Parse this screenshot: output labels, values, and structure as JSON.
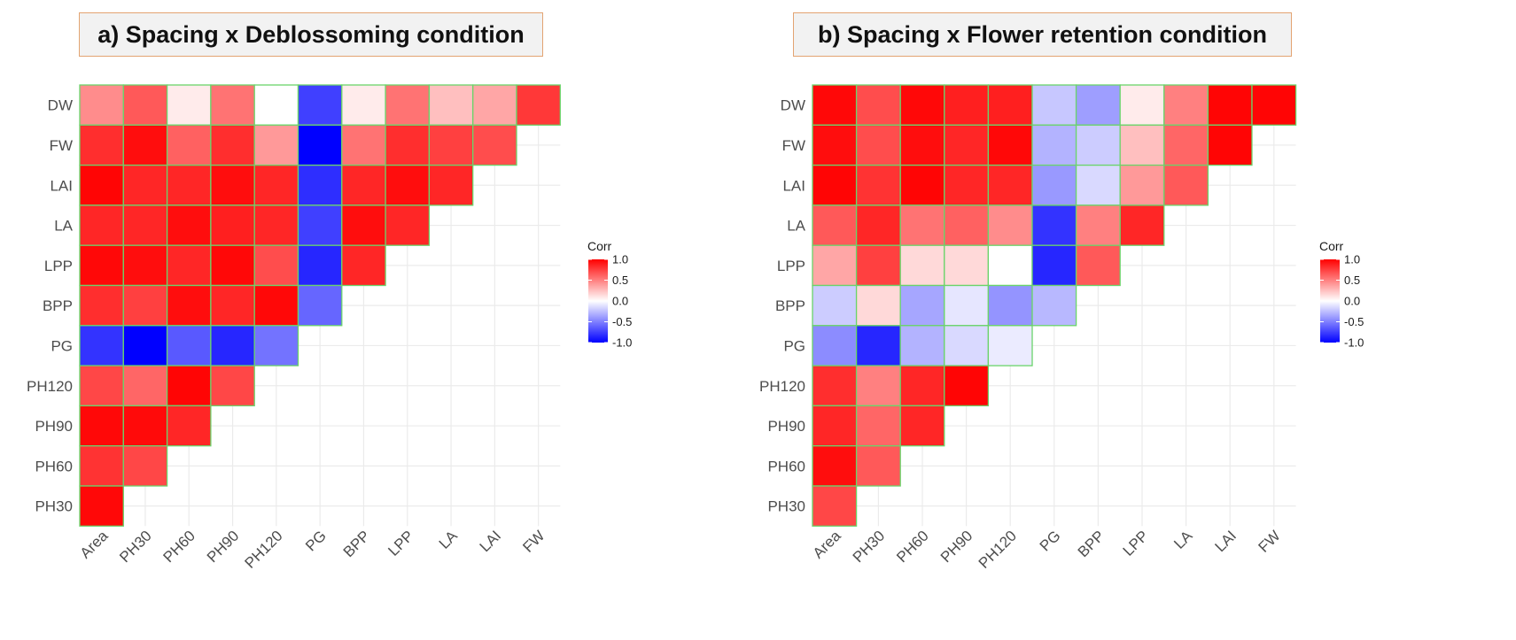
{
  "chart_data": [
    {
      "type": "heatmap",
      "title": "a) Spacing x Deblossoming condition",
      "x_labels": [
        "Area",
        "PH30",
        "PH60",
        "PH90",
        "PH120",
        "PG",
        "BPP",
        "LPP",
        "LA",
        "LAI",
        "FW"
      ],
      "y_labels": [
        "DW",
        "FW",
        "LAI",
        "LA",
        "LPP",
        "BPP",
        "PG",
        "PH120",
        "PH90",
        "PH60",
        "PH30"
      ],
      "values": [
        [
          0.45,
          0.65,
          0.08,
          0.55,
          0.0,
          -0.75,
          0.08,
          0.55,
          0.25,
          0.35,
          0.78
        ],
        [
          0.82,
          0.95,
          0.62,
          0.82,
          0.4,
          -1.0,
          0.55,
          0.82,
          0.75,
          0.7
        ],
        [
          0.98,
          0.85,
          0.85,
          0.95,
          0.85,
          -0.82,
          0.85,
          0.95,
          0.85
        ],
        [
          0.85,
          0.85,
          0.95,
          0.88,
          0.85,
          -0.75,
          0.95,
          0.85
        ],
        [
          0.97,
          0.95,
          0.85,
          0.97,
          0.7,
          -0.85,
          0.85
        ],
        [
          0.82,
          0.75,
          0.95,
          0.85,
          0.97,
          -0.6
        ],
        [
          -0.8,
          -1.0,
          -0.65,
          -0.85,
          -0.55
        ],
        [
          0.72,
          0.6,
          0.98,
          0.72
        ],
        [
          0.97,
          0.96,
          0.85
        ],
        [
          0.8,
          0.72
        ],
        [
          0.97
        ]
      ],
      "legend": {
        "title": "Corr",
        "ticks": [
          "1.0",
          "0.5",
          "0.0",
          "-0.5",
          "-1.0"
        ],
        "range": [
          -1,
          1
        ]
      }
    },
    {
      "type": "heatmap",
      "title": "b) Spacing x Flower retention condition",
      "x_labels": [
        "Area",
        "PH30",
        "PH60",
        "PH90",
        "PH120",
        "PG",
        "BPP",
        "LPP",
        "LA",
        "LAI",
        "FW"
      ],
      "y_labels": [
        "DW",
        "FW",
        "LAI",
        "LA",
        "LPP",
        "BPP",
        "PG",
        "PH120",
        "PH90",
        "PH60",
        "PH30"
      ],
      "values": [
        [
          0.97,
          0.7,
          0.97,
          0.88,
          0.88,
          -0.22,
          -0.38,
          0.08,
          0.5,
          0.98,
          0.98
        ],
        [
          0.95,
          0.7,
          0.95,
          0.85,
          0.97,
          -0.3,
          -0.2,
          0.25,
          0.6,
          0.98
        ],
        [
          0.98,
          0.8,
          0.98,
          0.85,
          0.85,
          -0.4,
          -0.15,
          0.4,
          0.65
        ],
        [
          0.65,
          0.85,
          0.55,
          0.62,
          0.45,
          -0.8,
          0.5,
          0.85
        ],
        [
          0.35,
          0.75,
          0.15,
          0.15,
          0.0,
          -0.85,
          0.65
        ],
        [
          -0.2,
          0.15,
          -0.35,
          -0.1,
          -0.42,
          -0.28
        ],
        [
          -0.45,
          -0.85,
          -0.3,
          -0.15,
          -0.08
        ],
        [
          0.82,
          0.5,
          0.85,
          0.98
        ],
        [
          0.85,
          0.6,
          0.85
        ],
        [
          0.95,
          0.65
        ],
        [
          0.72
        ]
      ],
      "legend": {
        "title": "Corr",
        "ticks": [
          "1.0",
          "0.5",
          "0.0",
          "-0.5",
          "-1.0"
        ],
        "range": [
          -1,
          1
        ]
      }
    }
  ]
}
